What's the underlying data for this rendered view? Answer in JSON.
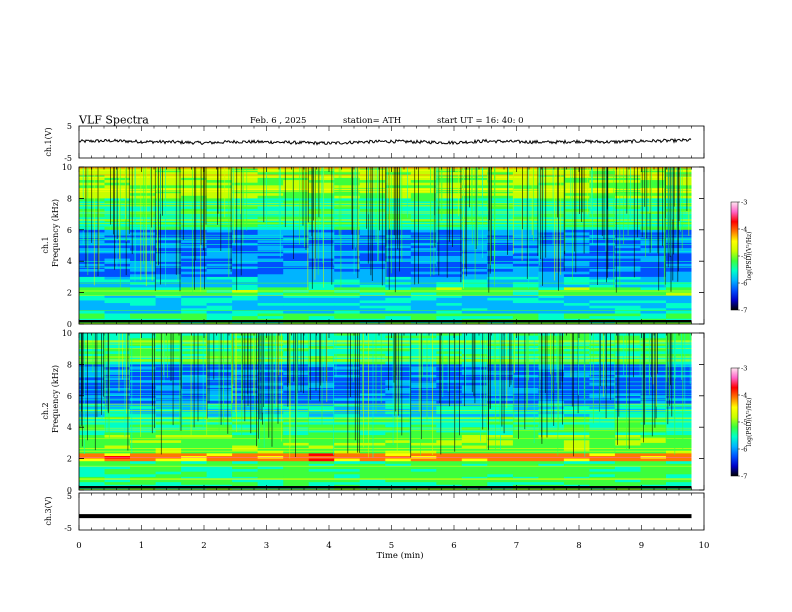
{
  "header": {
    "title": "VLF  Spectra",
    "date": "Feb. 6  , 2025",
    "station": "station= ATH",
    "start": "start  UT  =   16: 40: 0"
  },
  "chart_data": [
    {
      "type": "line",
      "id": "ch1-voltage",
      "ylabel": "ch.1(V)",
      "ylim": [
        -5,
        5
      ],
      "yticks": [
        "5",
        "-5"
      ],
      "xlim": [
        0,
        10
      ],
      "series": [
        {
          "color": "#000000",
          "description_values": {
            "x": [
              0,
              0.5,
              1,
              1.5,
              2,
              2.5,
              3,
              3.5,
              4,
              4.5,
              5,
              5.5,
              6,
              6.5,
              7,
              7.5,
              8,
              8.5,
              9,
              9.5,
              9.8
            ],
            "y": [
              0.2,
              0.4,
              0.1,
              0.0,
              -0.3,
              0.1,
              0.0,
              -0.2,
              -0.4,
              0.0,
              0.2,
              0.0,
              -0.2,
              0.3,
              0.1,
              -0.1,
              0.2,
              0.0,
              0.3,
              0.4,
              0.6
            ]
          }
        }
      ]
    },
    {
      "type": "heatmap",
      "id": "ch1-spectrogram",
      "ylabel": "ch.1\nFrequency (kHz)",
      "ylim": [
        0,
        10
      ],
      "yticks": [
        "0",
        "2",
        "4",
        "6",
        "8",
        "10"
      ],
      "xlim": [
        0,
        10
      ],
      "colorbar": {
        "label": "log(PSD)(V²/Hz)",
        "range": [
          -7,
          -3
        ],
        "ticks": [
          "-3",
          "-4",
          "-5",
          "-6",
          "-7"
        ]
      }
    },
    {
      "type": "heatmap",
      "id": "ch2-spectrogram",
      "ylabel": "ch.2\nFrequency (kHz)",
      "ylim": [
        0,
        10
      ],
      "yticks": [
        "0",
        "2",
        "4",
        "6",
        "8",
        "10"
      ],
      "xlim": [
        0,
        10
      ],
      "colorbar": {
        "label": "log(PSD)(V²/Hz)",
        "range": [
          -7,
          -3
        ],
        "ticks": [
          "-3",
          "-4",
          "-5",
          "-6",
          "-7"
        ]
      }
    },
    {
      "type": "line",
      "id": "ch3-voltage",
      "ylabel": "ch.3(V)",
      "ylim": [
        -5,
        5
      ],
      "yticks": [
        "5",
        "0",
        "-5"
      ],
      "xlim": [
        0,
        10
      ],
      "series": [
        {
          "color": "#000000",
          "description_values": {
            "x": [
              0,
              9.8
            ],
            "y": [
              -1.6,
              -1.6
            ]
          }
        }
      ]
    }
  ],
  "xaxis": {
    "label": "Time  (min)",
    "ticks": [
      "0",
      "1",
      "2",
      "3",
      "4",
      "5",
      "6",
      "7",
      "8",
      "9",
      "10"
    ]
  },
  "colormap": [
    "#000000",
    "#0000c8",
    "#0050ff",
    "#00b4ff",
    "#00ffc8",
    "#3cff3c",
    "#c8ff00",
    "#ffff00",
    "#ff7800",
    "#ff0000",
    "#ff64c8",
    "#ffe6f0"
  ]
}
